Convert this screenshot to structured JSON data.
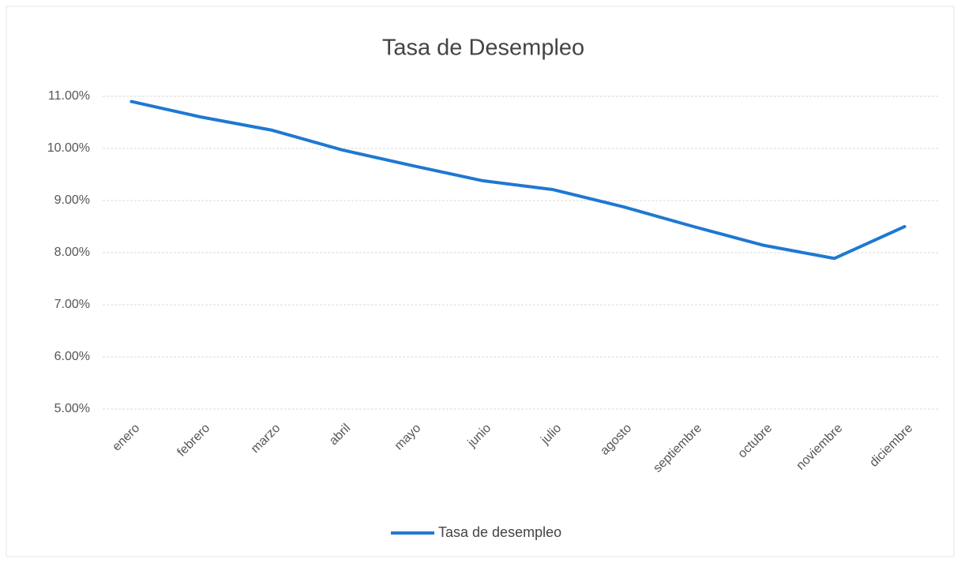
{
  "chart_data": {
    "type": "line",
    "title": "Tasa de Desempleo",
    "categories": [
      "enero",
      "febrero",
      "marzo",
      "abril",
      "mayo",
      "junio",
      "julio",
      "agosto",
      "septiembre",
      "octubre",
      "noviembre",
      "diciembre"
    ],
    "series": [
      {
        "name": "Tasa de desempleo",
        "color": "#1f78d1",
        "values": [
          10.9,
          10.6,
          10.35,
          9.97,
          9.67,
          9.38,
          9.21,
          8.88,
          8.5,
          8.14,
          7.89,
          8.5
        ]
      }
    ],
    "ylim": [
      5,
      11
    ],
    "yticks": [
      {
        "value": 5,
        "label": "5.00%"
      },
      {
        "value": 6,
        "label": "6.00%"
      },
      {
        "value": 7,
        "label": "7.00%"
      },
      {
        "value": 8,
        "label": "8.00%"
      },
      {
        "value": 9,
        "label": "9.00%"
      },
      {
        "value": 10,
        "label": "10.00%"
      },
      {
        "value": 11,
        "label": "11.00%"
      }
    ],
    "grid": true,
    "legend": "bottom"
  }
}
